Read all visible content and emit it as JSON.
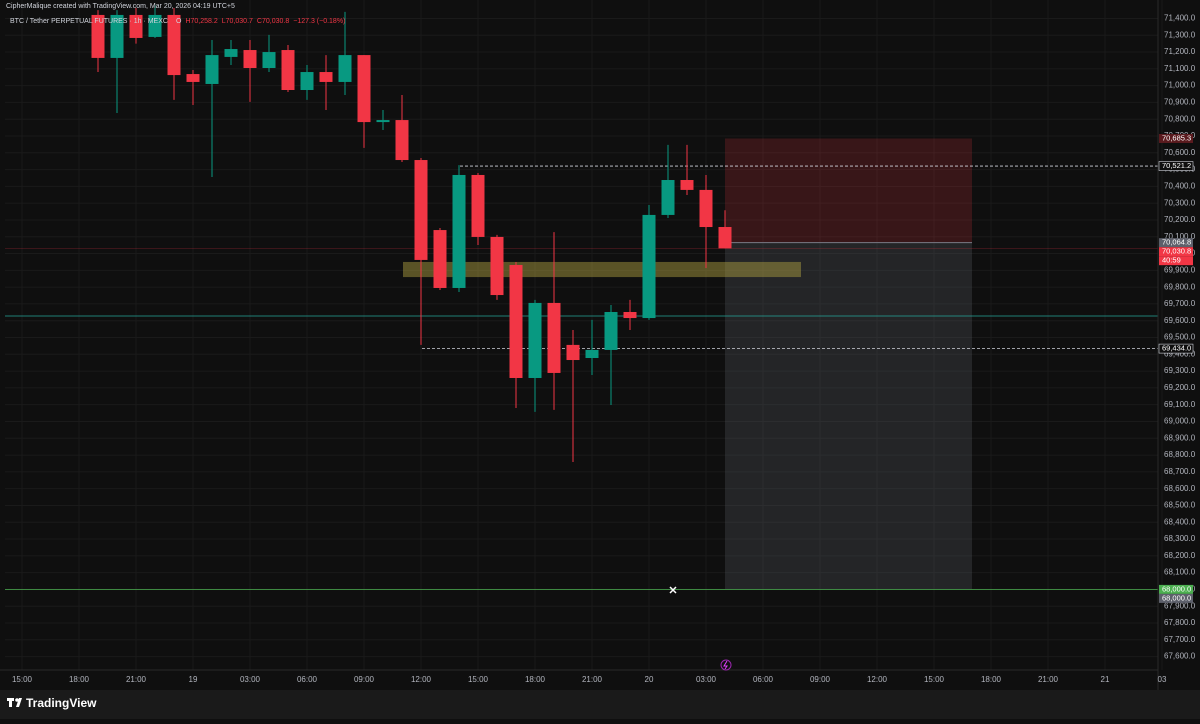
{
  "chart_data": {
    "type": "candlestick",
    "watermark": "CipherMalique created with TradingView.com, Mar 20, 2026 04:19 UTC+5",
    "symbol": "BTC / Tether PERPETUAL FUTURES · 1h · MEXC",
    "legend_ohlc": [
      "O",
      "H70,258.2",
      "L70,030.7",
      "C70,030.8",
      "−127.3 (−0.18%)"
    ],
    "brand": "TradingView",
    "up_color": "#089981",
    "down_color": "#f23645",
    "grid": true,
    "categories": [
      "15:00",
      null,
      null,
      "18:00",
      null,
      null,
      "21:00",
      null,
      null,
      "19",
      null,
      null,
      "03:00",
      null,
      null,
      "06:00",
      null,
      null,
      "09:00",
      null,
      null,
      "12:00",
      null,
      null,
      "15:00",
      null,
      null,
      "18:00",
      null,
      null,
      "21:00",
      null,
      null,
      "20",
      null,
      null,
      "03:00",
      null,
      null,
      "06:00",
      null,
      null,
      "09:00",
      null,
      null,
      "12:00",
      null,
      null,
      "15:00",
      null,
      null,
      "18:00",
      null,
      null,
      "21:00",
      null,
      null,
      "21",
      null,
      null,
      "03"
    ],
    "open": [
      null,
      null,
      null,
      null,
      71421,
      71165,
      71421,
      71290,
      71421,
      71069,
      71010,
      71171,
      71212,
      71105,
      71212,
      70974,
      71081,
      71022,
      71182,
      70783,
      70795,
      70557,
      70140,
      69795,
      70468,
      70099,
      69932,
      69259,
      69706,
      69456,
      69378,
      69426,
      69652,
      69616,
      70230,
      70438,
      70379,
      70158.1,
      null,
      null,
      null,
      null,
      null,
      null,
      null,
      null,
      null,
      null,
      null,
      null,
      null,
      null,
      null,
      null,
      null,
      null,
      null,
      null,
      null,
      null,
      null
    ],
    "high": [
      null,
      null,
      null,
      null,
      71450,
      71450,
      71462,
      71480,
      71462,
      71093,
      71272,
      71272,
      71272,
      71302,
      71242,
      71123,
      71182,
      71439,
      71182,
      70855,
      70944,
      70569,
      70152,
      70527,
      70480,
      70111,
      69950,
      69724,
      70128,
      69545,
      69605,
      69694,
      69724,
      70289,
      70647,
      70647,
      70468,
      70258.2,
      null,
      null,
      null,
      null,
      null,
      null,
      null,
      null,
      null,
      null,
      null,
      null,
      null,
      null,
      null,
      null,
      null,
      null,
      null,
      null,
      null,
      null,
      null
    ],
    "low": [
      null,
      null,
      null,
      null,
      71081,
      70837,
      71250,
      71284,
      70915,
      70885,
      70456,
      71123,
      70903,
      71081,
      70962,
      70915,
      70855,
      70944,
      70629,
      70736,
      70545,
      69456,
      69783,
      69771,
      70051,
      69724,
      69080,
      69057,
      69069,
      68759,
      69277,
      69098,
      69545,
      69605,
      70212,
      70349,
      69914,
      70030.7,
      null,
      null,
      null,
      null,
      null,
      null,
      null,
      null,
      null,
      null,
      null,
      null,
      null,
      null,
      null,
      null,
      null,
      null,
      null,
      null,
      null,
      null,
      null
    ],
    "close": [
      null,
      null,
      null,
      null,
      71165,
      71421,
      71284,
      71421,
      71063,
      71022,
      71182,
      71218,
      71105,
      71200,
      70974,
      71081,
      71022,
      71182,
      70783,
      70795,
      70557,
      69962,
      69795,
      70468,
      70099,
      69753,
      69259,
      69706,
      69289,
      69366,
      69426,
      69652,
      69616,
      70230,
      70438,
      70379,
      70158,
      70030.8,
      null,
      null,
      null,
      null,
      null,
      null,
      null,
      null,
      null,
      null,
      null,
      null,
      null,
      null,
      null,
      null,
      null,
      null,
      null,
      null,
      null,
      null,
      null
    ],
    "ylim": [
      67520,
      71510
    ],
    "yticks": [
      {
        "value": 67600,
        "label": "67,600.0"
      },
      {
        "value": 67700,
        "label": "67,700.0"
      },
      {
        "value": 67800,
        "label": "67,800.0"
      },
      {
        "value": 67900,
        "label": "67,900.0"
      },
      {
        "value": 68000,
        "label": "68,000.0"
      },
      {
        "value": 68100,
        "label": "68,100.0"
      },
      {
        "value": 68200,
        "label": "68,200.0"
      },
      {
        "value": 68300,
        "label": "68,300.0"
      },
      {
        "value": 68400,
        "label": "68,400.0"
      },
      {
        "value": 68500,
        "label": "68,500.0"
      },
      {
        "value": 68600,
        "label": "68,600.0"
      },
      {
        "value": 68700,
        "label": "68,700.0"
      },
      {
        "value": 68800,
        "label": "68,800.0"
      },
      {
        "value": 68900,
        "label": "68,900.0"
      },
      {
        "value": 69000,
        "label": "69,000.0"
      },
      {
        "value": 69100,
        "label": "69,100.0"
      },
      {
        "value": 69200,
        "label": "69,200.0"
      },
      {
        "value": 69300,
        "label": "69,300.0"
      },
      {
        "value": 69400,
        "label": "69,400.0"
      },
      {
        "value": 69500,
        "label": "69,500.0"
      },
      {
        "value": 69600,
        "label": "69,600.0"
      },
      {
        "value": 69700,
        "label": "69,700.0"
      },
      {
        "value": 69800,
        "label": "69,800.0"
      },
      {
        "value": 69900,
        "label": "69,900.0"
      },
      {
        "value": 70000,
        "label": "70,000.0"
      },
      {
        "value": 70100,
        "label": "70,100.0"
      },
      {
        "value": 70200,
        "label": "70,200.0"
      },
      {
        "value": 70300,
        "label": "70,300.0"
      },
      {
        "value": 70400,
        "label": "70,400.0"
      },
      {
        "value": 70500,
        "label": "70,500.0"
      },
      {
        "value": 70600,
        "label": "70,600.0"
      },
      {
        "value": 70700,
        "label": "70,700.0"
      },
      {
        "value": 70800,
        "label": "70,800.0"
      },
      {
        "value": 70900,
        "label": "70,900.0"
      },
      {
        "value": 71000,
        "label": "71,000.0"
      },
      {
        "value": 71100,
        "label": "71,100.0"
      },
      {
        "value": 71200,
        "label": "71,200.0"
      },
      {
        "value": 71300,
        "label": "71,300.0"
      },
      {
        "value": 71400,
        "label": "71,400.0"
      }
    ],
    "price_labels": [
      {
        "value": 70685.3,
        "label": "70,685.3",
        "color": "#5a1a1e"
      },
      {
        "value": 70521.2,
        "label": "70,521.2",
        "color": "#0f0f0f"
      },
      {
        "value": 70064.8,
        "label": "70,064.8",
        "color": "#5d606b"
      },
      {
        "value": 70030.8,
        "label": "70,030.8",
        "color": "#f23645"
      },
      {
        "value": 69434.0,
        "label": "69,434.0",
        "color": "#0f0f0f"
      },
      {
        "value": 68000.0,
        "label": "68,000.0",
        "color": "#4caf50"
      },
      {
        "value": 68000.0,
        "label": "68,000.0",
        "color": "#5d606b"
      }
    ],
    "countdown": "40:59",
    "level_line": {
      "value": 69628,
      "color": "#26a69a"
    },
    "zone": {
      "low": 69860,
      "high": 69950,
      "color": "#b5a642"
    }
  }
}
